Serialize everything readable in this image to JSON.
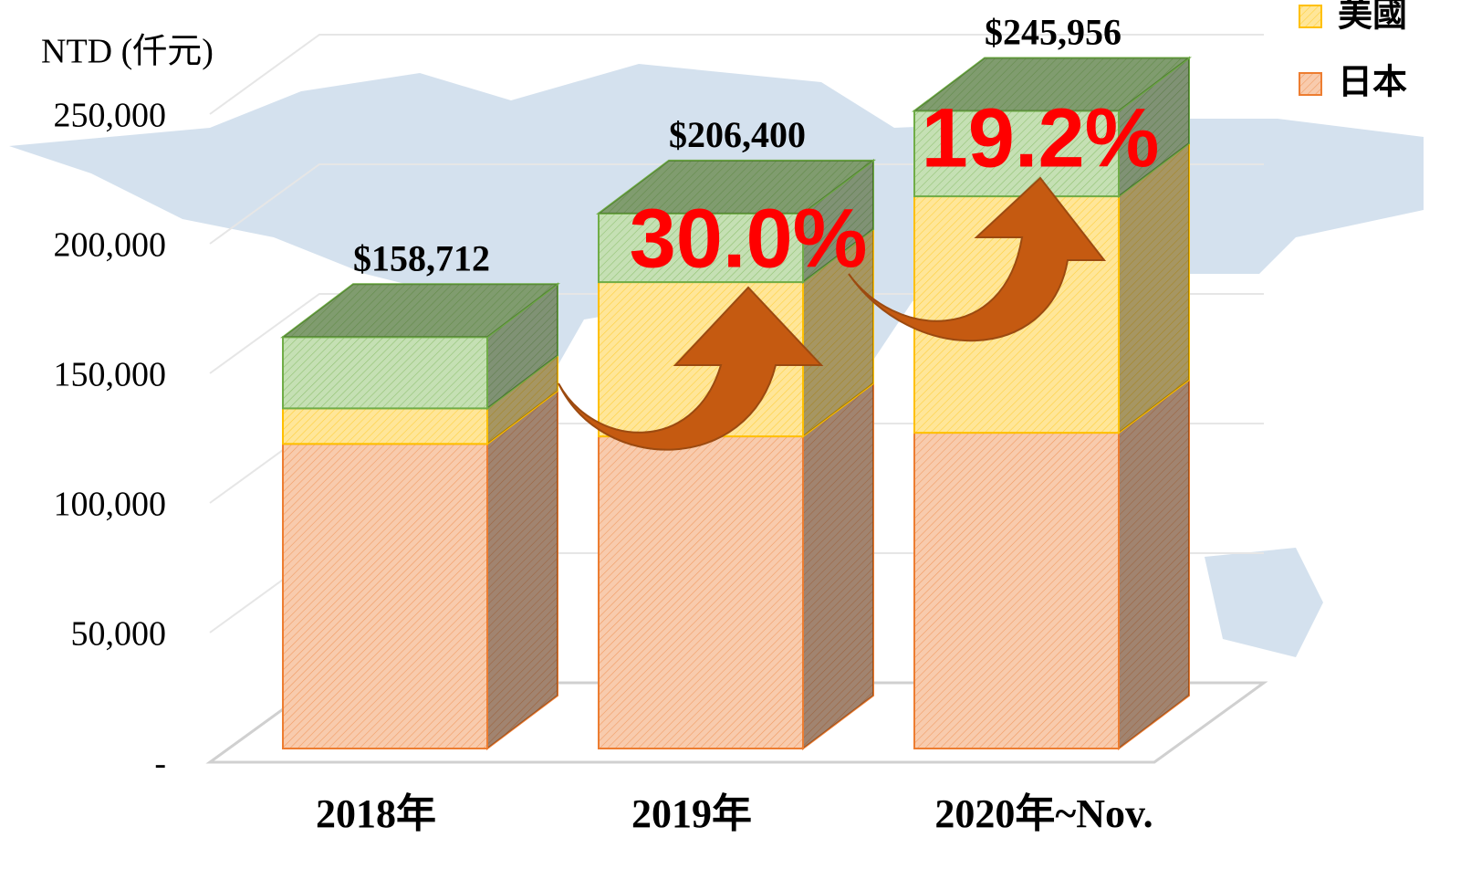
{
  "chart_data": {
    "type": "bar3d_stacked",
    "y_label": "NTD (仟元)",
    "categories": [
      "2018年",
      "2019年",
      "2020年~Nov."
    ],
    "series": [
      {
        "name": "日本",
        "color": "#f8cbad",
        "stroke": "#ed7d31",
        "values": [
          117500,
          120400,
          121800
        ]
      },
      {
        "name": "美國",
        "color": "#ffe699",
        "stroke": "#ffc000",
        "values": [
          13700,
          59500,
          91200
        ]
      },
      {
        "color": "#c5e0b4",
        "stroke": "#70ad47",
        "values": [
          27512,
          26500,
          32956
        ]
      }
    ],
    "totals": [
      158712,
      206400,
      245956
    ],
    "total_labels": [
      "$158,712",
      "$206,400",
      "$245,956"
    ],
    "growth": [
      30.0,
      19.2
    ],
    "growth_labels": [
      "30.0%",
      "19.2%"
    ],
    "ylim": [
      0,
      250000
    ],
    "yticks": [
      {
        "value": 0,
        "label": "-"
      },
      {
        "value": 50000,
        "label": "50,000"
      },
      {
        "value": 100000,
        "label": "100,000"
      },
      {
        "value": 150000,
        "label": "150,000"
      },
      {
        "value": 200000,
        "label": "200,000"
      },
      {
        "value": 250000,
        "label": "250,000"
      }
    ],
    "grid": true
  }
}
